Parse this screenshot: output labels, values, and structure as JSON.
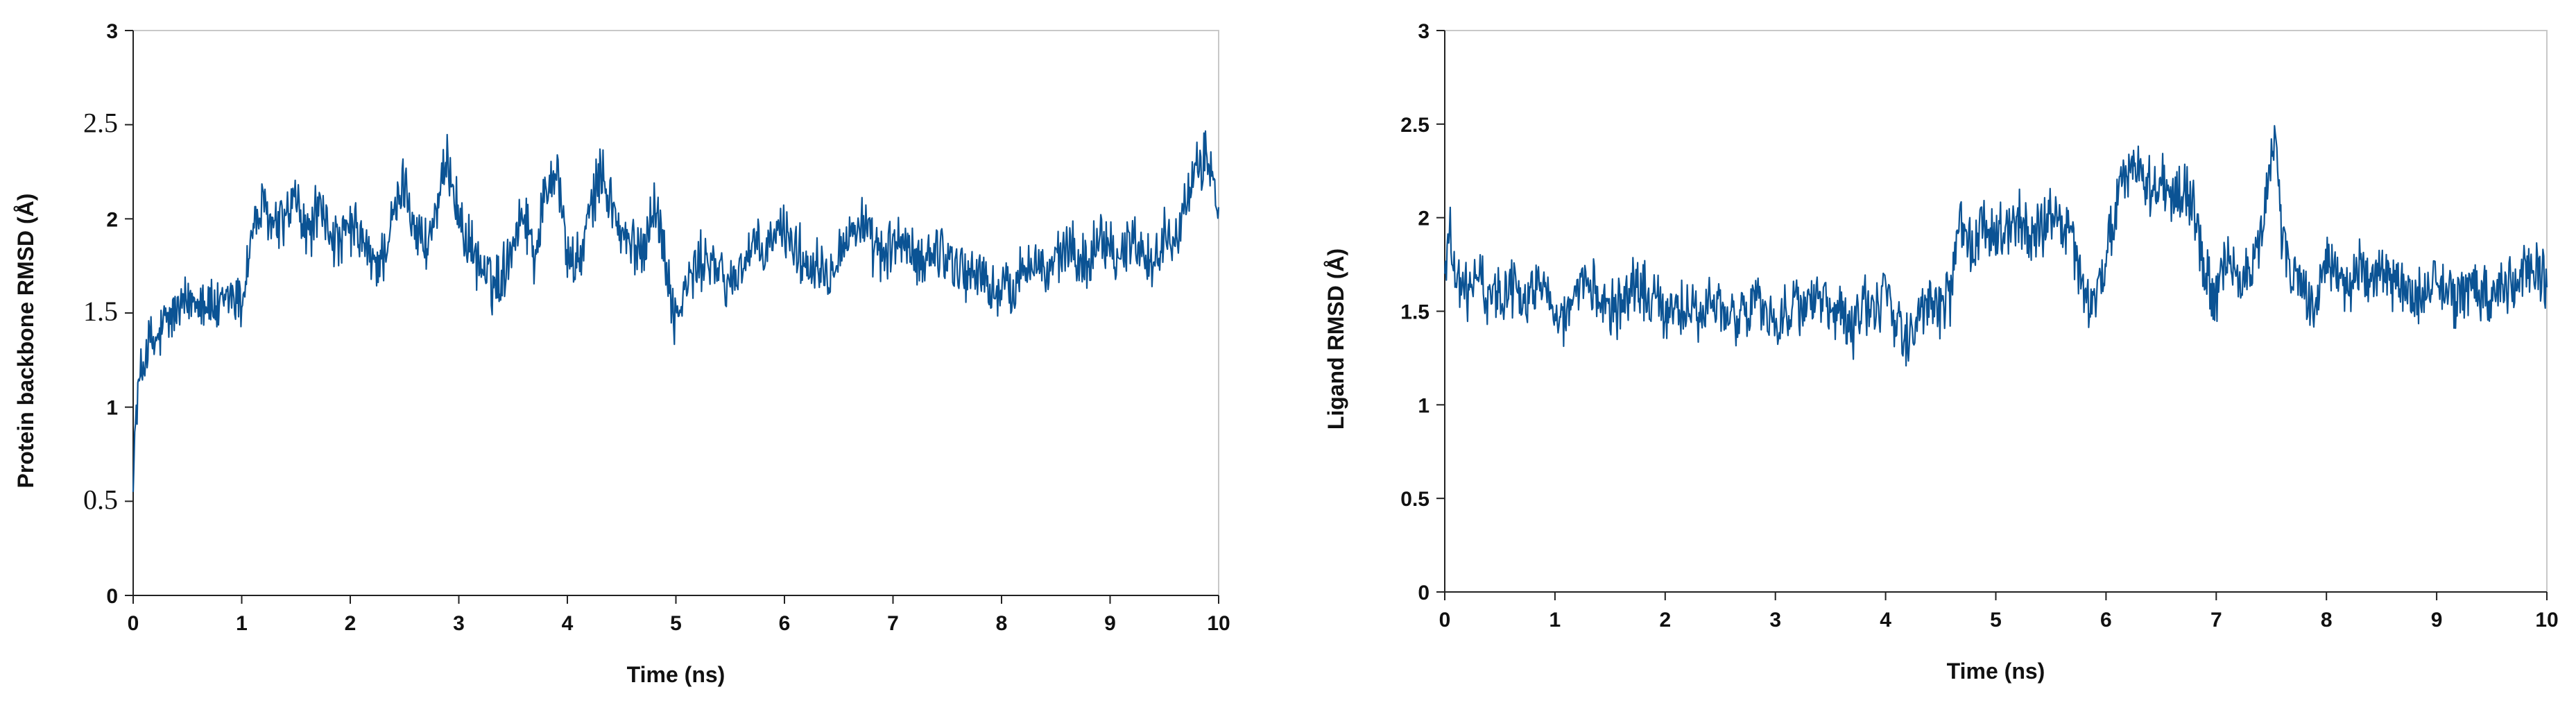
{
  "chart_data": [
    {
      "type": "line",
      "title": "",
      "xlabel": "Time (ns)",
      "ylabel": "Protein backbone RMSD (Å)",
      "xlim": [
        0,
        10
      ],
      "ylim": [
        0,
        3
      ],
      "xticks": [
        "0",
        "1",
        "2",
        "3",
        "4",
        "5",
        "6",
        "7",
        "8",
        "9",
        "10"
      ],
      "yticks": [
        "0",
        "0.5",
        "1",
        "1.5",
        "2",
        "2.5",
        "3"
      ],
      "yticks_serif": [
        "0.5",
        "1.5",
        "2.5"
      ],
      "grid": false,
      "legend": "none",
      "color": "#0b5394",
      "series": [
        {
          "x": [
            0,
            0.02,
            0.05,
            0.1,
            0.15,
            0.2,
            0.3,
            0.4,
            0.5,
            0.6,
            0.7,
            0.8,
            0.9,
            1.0,
            1.05,
            1.1,
            1.2,
            1.3,
            1.4,
            1.5,
            1.6,
            1.7,
            1.8,
            1.9,
            2.0,
            2.1,
            2.2,
            2.3,
            2.4,
            2.5,
            2.6,
            2.7,
            2.8,
            2.9,
            2.95,
            3.0,
            3.1,
            3.2,
            3.3,
            3.4,
            3.5,
            3.6,
            3.7,
            3.8,
            3.9,
            4.0,
            4.1,
            4.2,
            4.3,
            4.4,
            4.5,
            4.6,
            4.7,
            4.8,
            4.9,
            5.0,
            5.1,
            5.2,
            5.3,
            5.4,
            5.5,
            5.6,
            5.7,
            5.8,
            5.9,
            6.0,
            6.1,
            6.2,
            6.3,
            6.4,
            6.5,
            6.6,
            6.7,
            6.8,
            6.9,
            7.0,
            7.1,
            7.2,
            7.3,
            7.4,
            7.5,
            7.6,
            7.7,
            7.8,
            7.9,
            8.0,
            8.1,
            8.2,
            8.3,
            8.4,
            8.5,
            8.6,
            8.7,
            8.8,
            8.9,
            9.0,
            9.1,
            9.2,
            9.3,
            9.4,
            9.5,
            9.6,
            9.7,
            9.8,
            9.9,
            10.0
          ],
          "y": [
            0.55,
            0.9,
            1.1,
            1.25,
            1.35,
            1.32,
            1.45,
            1.5,
            1.55,
            1.6,
            1.55,
            1.5,
            1.6,
            1.55,
            1.75,
            1.95,
            2.05,
            1.95,
            2.0,
            2.1,
            1.9,
            2.05,
            1.95,
            1.85,
            1.95,
            1.9,
            1.75,
            1.8,
            2.0,
            2.2,
            1.95,
            1.85,
            2.05,
            2.3,
            2.2,
            2.0,
            1.85,
            1.75,
            1.65,
            1.7,
            1.9,
            2.05,
            1.8,
            2.15,
            2.3,
            1.8,
            1.75,
            2.0,
            2.25,
            2.1,
            1.9,
            1.85,
            1.85,
            2.1,
            1.8,
            1.45,
            1.65,
            1.75,
            1.8,
            1.7,
            1.65,
            1.75,
            1.85,
            1.8,
            1.9,
            1.95,
            1.85,
            1.75,
            1.8,
            1.7,
            1.85,
            1.9,
            2.0,
            1.85,
            1.8,
            1.85,
            1.9,
            1.75,
            1.8,
            1.85,
            1.8,
            1.75,
            1.7,
            1.72,
            1.6,
            1.65,
            1.6,
            1.75,
            1.8,
            1.7,
            1.75,
            1.85,
            1.8,
            1.75,
            1.95,
            1.85,
            1.8,
            1.9,
            1.85,
            1.75,
            1.9,
            1.95,
            2.05,
            2.25,
            2.35,
            2.05
          ]
        }
      ]
    },
    {
      "type": "line",
      "title": "",
      "xlabel": "Time (ns)",
      "ylabel": "Ligand RMSD (Å)",
      "xlim": [
        0,
        10
      ],
      "ylim": [
        0,
        3
      ],
      "xticks": [
        "0",
        "1",
        "2",
        "3",
        "4",
        "5",
        "6",
        "7",
        "8",
        "9",
        "10"
      ],
      "yticks": [
        "0",
        "0.5",
        "1",
        "1.5",
        "2",
        "2.5",
        "3"
      ],
      "yticks_serif": [],
      "grid": false,
      "legend": "none",
      "color": "#0b5394",
      "series": [
        {
          "x": [
            0,
            0.05,
            0.1,
            0.2,
            0.3,
            0.4,
            0.5,
            0.6,
            0.7,
            0.8,
            0.9,
            1.0,
            1.1,
            1.2,
            1.3,
            1.4,
            1.5,
            1.6,
            1.7,
            1.8,
            1.9,
            2.0,
            2.1,
            2.2,
            2.3,
            2.4,
            2.5,
            2.6,
            2.7,
            2.8,
            2.9,
            3.0,
            3.1,
            3.2,
            3.3,
            3.4,
            3.5,
            3.6,
            3.7,
            3.8,
            3.9,
            4.0,
            4.1,
            4.2,
            4.3,
            4.4,
            4.5,
            4.6,
            4.65,
            4.7,
            4.8,
            4.9,
            5.0,
            5.1,
            5.2,
            5.3,
            5.4,
            5.5,
            5.6,
            5.7,
            5.8,
            5.9,
            6.0,
            6.1,
            6.2,
            6.3,
            6.4,
            6.5,
            6.6,
            6.7,
            6.8,
            6.9,
            7.0,
            7.1,
            7.2,
            7.3,
            7.4,
            7.5,
            7.55,
            7.6,
            7.7,
            7.8,
            7.9,
            8.0,
            8.1,
            8.2,
            8.3,
            8.4,
            8.5,
            8.6,
            8.7,
            8.8,
            8.9,
            9.0,
            9.1,
            9.2,
            9.3,
            9.4,
            9.5,
            9.6,
            9.7,
            9.8,
            9.9,
            10.0
          ],
          "y": [
            1.7,
            1.95,
            1.65,
            1.6,
            1.7,
            1.55,
            1.6,
            1.65,
            1.55,
            1.6,
            1.7,
            1.5,
            1.45,
            1.55,
            1.65,
            1.6,
            1.55,
            1.5,
            1.65,
            1.6,
            1.55,
            1.5,
            1.55,
            1.5,
            1.45,
            1.55,
            1.5,
            1.45,
            1.5,
            1.55,
            1.5,
            1.45,
            1.5,
            1.55,
            1.5,
            1.6,
            1.45,
            1.5,
            1.35,
            1.55,
            1.45,
            1.65,
            1.4,
            1.35,
            1.5,
            1.55,
            1.5,
            1.6,
            1.95,
            1.9,
            1.85,
            2.0,
            1.9,
            1.95,
            2.0,
            1.9,
            1.95,
            2.0,
            1.95,
            1.85,
            1.6,
            1.5,
            1.8,
            2.1,
            2.2,
            2.3,
            2.15,
            2.2,
            2.1,
            2.15,
            2.05,
            1.7,
            1.55,
            1.8,
            1.65,
            1.7,
            1.9,
            2.3,
            2.4,
            1.85,
            1.7,
            1.6,
            1.5,
            1.8,
            1.7,
            1.6,
            1.75,
            1.65,
            1.7,
            1.6,
            1.65,
            1.55,
            1.6,
            1.7,
            1.6,
            1.55,
            1.65,
            1.6,
            1.55,
            1.7,
            1.6,
            1.75,
            1.7,
            1.65
          ]
        }
      ]
    }
  ]
}
